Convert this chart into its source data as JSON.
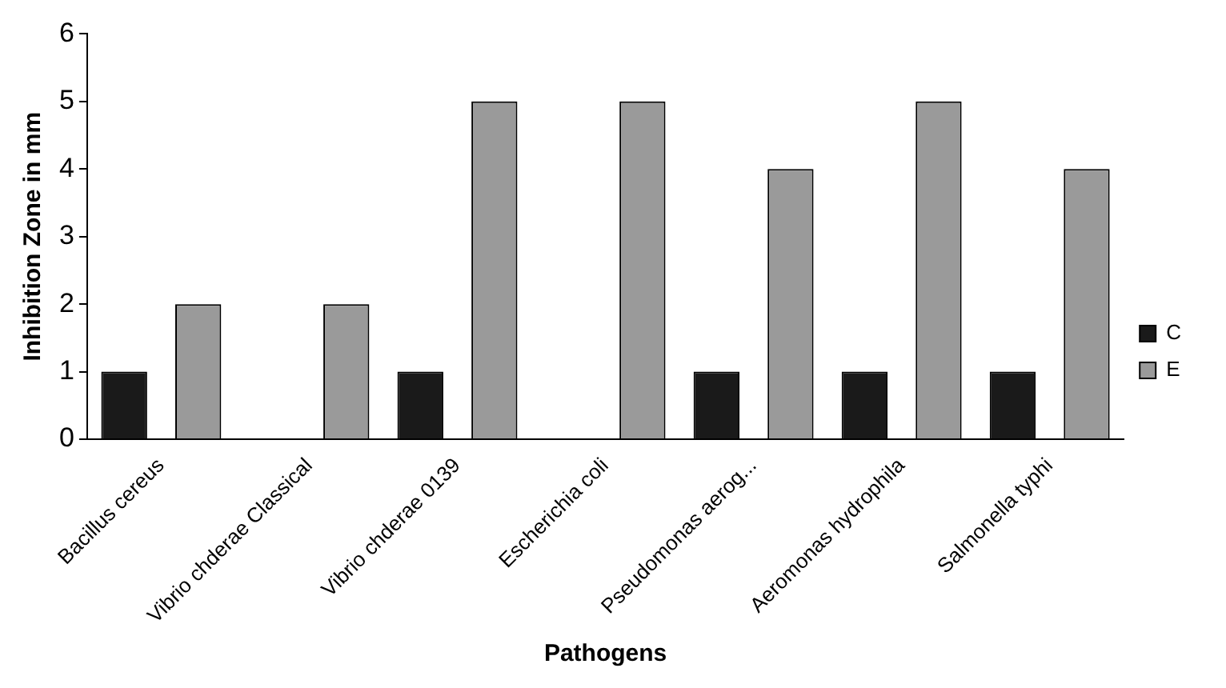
{
  "chart_data": {
    "type": "bar",
    "xlabel": "Pathogens",
    "ylabel": "Inhibition Zone in mm",
    "categories": [
      "Bacillus cereus",
      "Vibrio chderae Classical",
      "Vibrio chderae 0139",
      "Escherichia coli",
      "Pseudomonas aerog...",
      "Aeromonas hydrophila",
      "Salmonella typhi"
    ],
    "series": [
      {
        "name": "C",
        "color": "#1a1a1a",
        "values": [
          1,
          null,
          1,
          null,
          1,
          1,
          1
        ]
      },
      {
        "name": "E",
        "color": "#9a9a9a",
        "values": [
          2,
          2,
          5,
          5,
          4,
          5,
          4
        ]
      }
    ],
    "ylim": [
      0,
      6
    ],
    "yticks": [
      0,
      1,
      2,
      3,
      4,
      5,
      6
    ],
    "grid": false,
    "legend": "right"
  }
}
